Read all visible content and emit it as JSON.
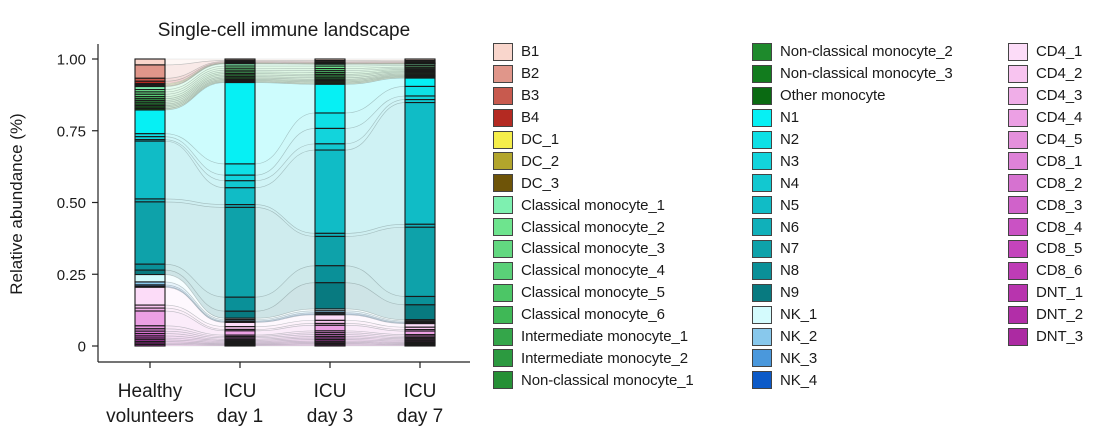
{
  "chart_data": {
    "type": "bar",
    "subtype": "stacked-alluvial",
    "title": "Single-cell immune landscape",
    "ylabel": "Relative abundance (%)",
    "xlabel": "",
    "ylim": [
      0,
      1
    ],
    "yticks": [
      "0",
      "0.25",
      "0.50",
      "0.75",
      "1.00"
    ],
    "categories": [
      "Healthy volunteers",
      "ICU day 1",
      "ICU day 3",
      "ICU day 7"
    ],
    "category_lines": [
      [
        "Healthy",
        "volunteers"
      ],
      [
        "ICU",
        "day 1"
      ],
      [
        "ICU",
        "day 3"
      ],
      [
        "ICU",
        "day 7"
      ]
    ],
    "grid": false,
    "legend_position": "right",
    "series": [
      {
        "name": "B1",
        "color": "#f9d6cc",
        "values": [
          0.02,
          0.005,
          0.005,
          0.005
        ]
      },
      {
        "name": "B2",
        "color": "#e0968a",
        "values": [
          0.045,
          0.004,
          0.004,
          0.004
        ]
      },
      {
        "name": "B3",
        "color": "#c85a4e",
        "values": [
          0.01,
          0.003,
          0.003,
          0.003
        ]
      },
      {
        "name": "B4",
        "color": "#b42a22",
        "values": [
          0.008,
          0.002,
          0.002,
          0.002
        ]
      },
      {
        "name": "DC_1",
        "color": "#f5ee4a",
        "values": [
          0.003,
          0.001,
          0.001,
          0.001
        ]
      },
      {
        "name": "DC_2",
        "color": "#b2a52c",
        "values": [
          0.004,
          0.001,
          0.001,
          0.001
        ]
      },
      {
        "name": "DC_3",
        "color": "#6e5408",
        "values": [
          0.003,
          0.001,
          0.001,
          0.001
        ]
      },
      {
        "name": "Classical monocyte_1",
        "color": "#7ef0b0",
        "values": [
          0.01,
          0.008,
          0.006,
          0.005
        ]
      },
      {
        "name": "Classical monocyte_2",
        "color": "#6ee48e",
        "values": [
          0.008,
          0.008,
          0.008,
          0.005
        ]
      },
      {
        "name": "Classical monocyte_3",
        "color": "#62d880",
        "values": [
          0.008,
          0.007,
          0.007,
          0.004
        ]
      },
      {
        "name": "Classical monocyte_4",
        "color": "#5ad078",
        "values": [
          0.008,
          0.006,
          0.006,
          0.004
        ]
      },
      {
        "name": "Classical monocyte_5",
        "color": "#4cc666",
        "values": [
          0.007,
          0.006,
          0.006,
          0.004
        ]
      },
      {
        "name": "Classical monocyte_6",
        "color": "#3fb856",
        "values": [
          0.006,
          0.005,
          0.005,
          0.003
        ]
      },
      {
        "name": "Intermediate monocyte_1",
        "color": "#34a64a",
        "values": [
          0.006,
          0.006,
          0.006,
          0.004
        ]
      },
      {
        "name": "Intermediate monocyte_2",
        "color": "#2c9a40",
        "values": [
          0.006,
          0.005,
          0.005,
          0.004
        ]
      },
      {
        "name": "Non-classical monocyte_1",
        "color": "#269036",
        "values": [
          0.005,
          0.005,
          0.004,
          0.004
        ]
      },
      {
        "name": "Non-classical monocyte_2",
        "color": "#1e8a2c",
        "values": [
          0.005,
          0.004,
          0.004,
          0.003
        ]
      },
      {
        "name": "Non-classical monocyte_3",
        "color": "#127c1e",
        "values": [
          0.005,
          0.004,
          0.004,
          0.003
        ]
      },
      {
        "name": "Other monocyte",
        "color": "#0a6a12",
        "values": [
          0.005,
          0.003,
          0.004,
          0.004
        ]
      },
      {
        "name": "N1",
        "color": "#06f0f4",
        "values": [
          0.08,
          0.29,
          0.093,
          0.028
        ]
      },
      {
        "name": "N2",
        "color": "#0ee0e6",
        "values": [
          0.01,
          0.04,
          0.05,
          0.032
        ]
      },
      {
        "name": "N3",
        "color": "#12d4dc",
        "values": [
          0.01,
          0.02,
          0.05,
          0.012
        ]
      },
      {
        "name": "N4",
        "color": "#12c8d0",
        "values": [
          0.005,
          0.025,
          0.02,
          0.01
        ]
      },
      {
        "name": "N5",
        "color": "#10bcc6",
        "values": [
          0.195,
          0.06,
          0.27,
          0.408
        ]
      },
      {
        "name": "N6",
        "color": "#10b0ba",
        "values": [
          0.01,
          0.01,
          0.01,
          0.01
        ]
      },
      {
        "name": "N7",
        "color": "#0ea2aa",
        "values": [
          0.21,
          0.32,
          0.095,
          0.232
        ]
      },
      {
        "name": "N8",
        "color": "#0a9098",
        "values": [
          0.02,
          0.05,
          0.055,
          0.028
        ]
      },
      {
        "name": "N9",
        "color": "#087a80",
        "values": [
          0.015,
          0.025,
          0.085,
          0.05
        ]
      },
      {
        "name": "NK_1",
        "color": "#d4fbfd",
        "values": [
          0.025,
          0.005,
          0.006,
          0.004
        ]
      },
      {
        "name": "NK_2",
        "color": "#88c8ec",
        "values": [
          0.01,
          0.005,
          0.006,
          0.004
        ]
      },
      {
        "name": "NK_3",
        "color": "#4a98dc",
        "values": [
          0.005,
          0.003,
          0.004,
          0.003
        ]
      },
      {
        "name": "NK_4",
        "color": "#0c5ac8",
        "values": [
          0.003,
          0.002,
          0.003,
          0.002
        ]
      },
      {
        "name": "CD4_1",
        "color": "#fcdcf8",
        "values": [
          0.06,
          0.015,
          0.018,
          0.012
        ]
      },
      {
        "name": "CD4_2",
        "color": "#f8c4f0",
        "values": [
          0.01,
          0.01,
          0.01,
          0.008
        ]
      },
      {
        "name": "CD4_3",
        "color": "#f0aee8",
        "values": [
          0.01,
          0.005,
          0.006,
          0.005
        ]
      },
      {
        "name": "CD4_4",
        "color": "#eca0e4",
        "values": [
          0.05,
          0.015,
          0.018,
          0.012
        ]
      },
      {
        "name": "CD4_5",
        "color": "#e490dc",
        "values": [
          0.01,
          0.005,
          0.006,
          0.005
        ]
      },
      {
        "name": "CD8_1",
        "color": "#de82d8",
        "values": [
          0.008,
          0.005,
          0.006,
          0.005
        ]
      },
      {
        "name": "CD8_2",
        "color": "#d672d0",
        "values": [
          0.008,
          0.005,
          0.006,
          0.004
        ]
      },
      {
        "name": "CD8_3",
        "color": "#d062ca",
        "values": [
          0.008,
          0.004,
          0.005,
          0.004
        ]
      },
      {
        "name": "CD8_4",
        "color": "#ca52c4",
        "values": [
          0.007,
          0.004,
          0.005,
          0.004
        ]
      },
      {
        "name": "CD8_5",
        "color": "#c444bc",
        "values": [
          0.006,
          0.004,
          0.005,
          0.004
        ]
      },
      {
        "name": "CD8_6",
        "color": "#be3cb6",
        "values": [
          0.006,
          0.003,
          0.004,
          0.003
        ]
      },
      {
        "name": "DNT_1",
        "color": "#b834ae",
        "values": [
          0.005,
          0.003,
          0.004,
          0.003
        ]
      },
      {
        "name": "DNT_2",
        "color": "#b22ea8",
        "values": [
          0.005,
          0.003,
          0.004,
          0.003
        ]
      },
      {
        "name": "DNT_3",
        "color": "#ac2aa2",
        "values": [
          0.005,
          0.003,
          0.004,
          0.003
        ]
      }
    ]
  }
}
